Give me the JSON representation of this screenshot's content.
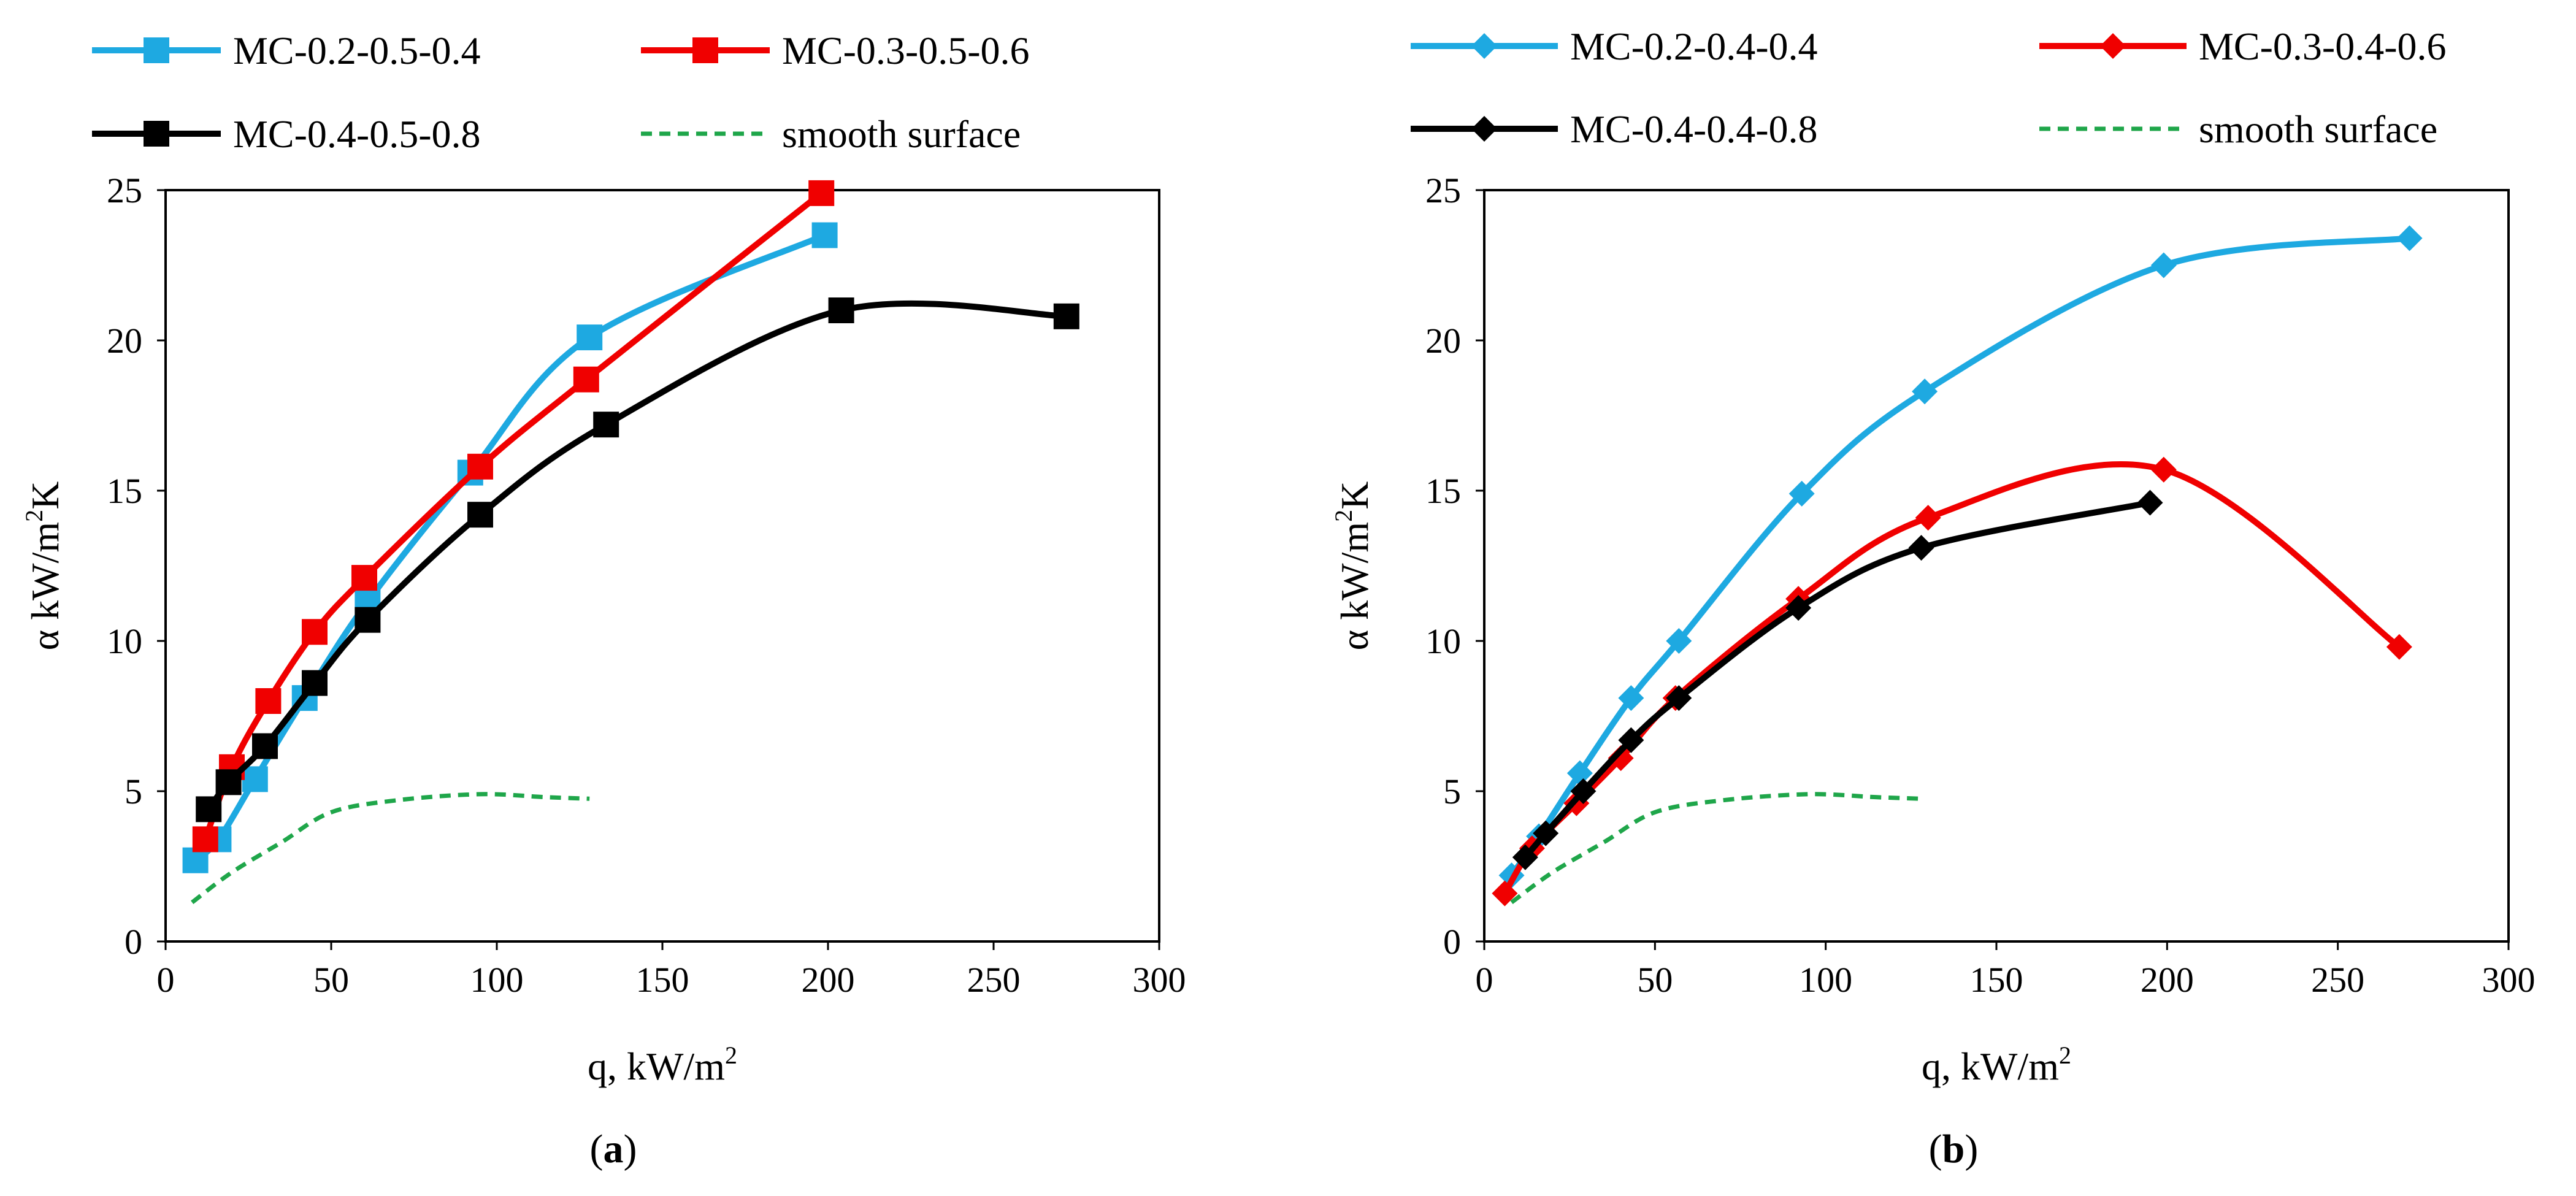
{
  "chart_data": [
    {
      "type": "line",
      "panel_label": "(a)",
      "panel_letter": "a",
      "xlabel": "q, kW/m",
      "xlabel_sup": "2",
      "ylabel": "α kW/m",
      "ylabel_sup": "2",
      "ylabel_tail": "K",
      "xlim": [
        0,
        300
      ],
      "ylim": [
        0,
        25
      ],
      "xticks": [
        0,
        50,
        100,
        150,
        200,
        250,
        300
      ],
      "yticks": [
        0,
        5,
        10,
        15,
        20,
        25
      ],
      "series": [
        {
          "name": "MC-0.2-0.5-0.4",
          "color": "#1ea9e1",
          "marker": "square",
          "dashed": false,
          "x": [
            9,
            16,
            27,
            42,
            61,
            92,
            128,
            199
          ],
          "y": [
            2.7,
            3.4,
            5.4,
            8.1,
            11.3,
            15.6,
            20.1,
            23.5
          ]
        },
        {
          "name": "MC-0.3-0.5-0.6",
          "color": "#f00000",
          "marker": "square",
          "dashed": false,
          "x": [
            12,
            20,
            31,
            45,
            60,
            95,
            127,
            198
          ],
          "y": [
            3.4,
            5.8,
            8.0,
            10.3,
            12.1,
            15.8,
            18.7,
            24.9
          ]
        },
        {
          "name": "MC-0.4-0.5-0.8",
          "color": "#000000",
          "marker": "square",
          "dashed": false,
          "x": [
            13,
            19,
            30,
            45,
            61,
            95,
            133,
            204,
            272
          ],
          "y": [
            4.4,
            5.3,
            6.5,
            8.6,
            10.7,
            14.2,
            17.2,
            21.0,
            20.8
          ]
        },
        {
          "name": "smooth surface",
          "color": "#1fa64a",
          "marker": "none",
          "dashed": true,
          "x": [
            8,
            20,
            35,
            50,
            70,
            95,
            115,
            128
          ],
          "y": [
            1.3,
            2.3,
            3.3,
            4.3,
            4.7,
            4.9,
            4.8,
            4.75
          ]
        }
      ]
    },
    {
      "type": "line",
      "panel_label": "(b)",
      "panel_letter": "b",
      "xlabel": "q, kW/m",
      "xlabel_sup": "2",
      "ylabel": "α kW/m",
      "ylabel_sup": "2",
      "ylabel_tail": "K",
      "xlim": [
        0,
        300
      ],
      "ylim": [
        0,
        25
      ],
      "xticks": [
        0,
        50,
        100,
        150,
        200,
        250,
        300
      ],
      "yticks": [
        0,
        5,
        10,
        15,
        20,
        25
      ],
      "series": [
        {
          "name": "MC-0.2-0.4-0.4",
          "color": "#1ea9e1",
          "marker": "diamond",
          "dashed": false,
          "x": [
            8,
            16,
            28,
            43,
            57,
            93,
            129,
            199,
            271
          ],
          "y": [
            2.2,
            3.5,
            5.6,
            8.1,
            10.0,
            14.9,
            18.3,
            22.5,
            23.4
          ]
        },
        {
          "name": "MC-0.3-0.4-0.6",
          "color": "#f00000",
          "marker": "diamond",
          "dashed": false,
          "x": [
            6,
            14,
            27,
            40,
            56,
            92,
            130,
            199,
            268
          ],
          "y": [
            1.6,
            3.1,
            4.6,
            6.1,
            8.1,
            11.4,
            14.1,
            15.7,
            9.8
          ]
        },
        {
          "name": "MC-0.4-0.4-0.8",
          "color": "#000000",
          "marker": "diamond",
          "dashed": false,
          "x": [
            12,
            18,
            29,
            43,
            57,
            92,
            128,
            195
          ],
          "y": [
            2.8,
            3.6,
            5.0,
            6.7,
            8.1,
            11.1,
            13.1,
            14.6
          ]
        },
        {
          "name": "smooth surface",
          "color": "#1fa64a",
          "marker": "none",
          "dashed": true,
          "x": [
            8,
            20,
            35,
            50,
            70,
            95,
            115,
            128
          ],
          "y": [
            1.3,
            2.3,
            3.3,
            4.3,
            4.7,
            4.9,
            4.8,
            4.75
          ]
        }
      ]
    }
  ]
}
